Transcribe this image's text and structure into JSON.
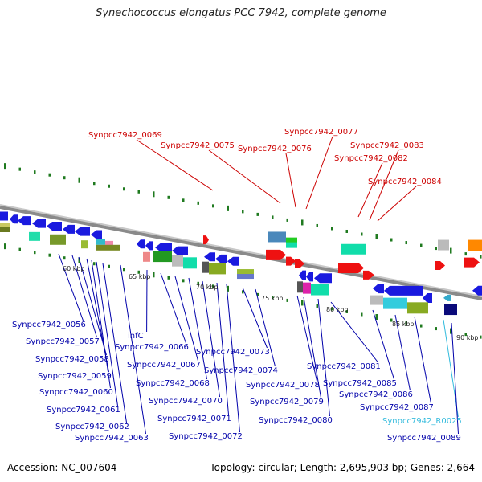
{
  "title": "Synechococcus elongatus PCC 7942, complete genome",
  "footer": {
    "accession": "Accession: NC_007604",
    "summary": "Topology: circular; Length: 2,695,903 bp; Genes: 2,664"
  },
  "colors": {
    "backbone": "#8a8a8a",
    "forward_label": "#cc0000",
    "reverse_label": "#0000aa",
    "rna_label": "#33bbdd",
    "tick": "#1f7a1f",
    "gene_blue": "#1a1adf",
    "gene_red": "#ee1111"
  },
  "scale_labels": [
    "60 kbp",
    "65 kbp",
    "70 kbp",
    "75 kbp",
    "80 kbp",
    "85 kbp",
    "90 kbp"
  ],
  "top_gene_labels": [
    "Synpcc7942_0069",
    "Synpcc7942_0075",
    "Synpcc7942_0076",
    "Synpcc7942_0077",
    "Synpcc7942_0083",
    "Synpcc7942_0082",
    "Synpcc7942_0084"
  ],
  "bottom_gene_labels": [
    "Synpcc7942_0056",
    "Synpcc7942_0057",
    "Synpcc7942_0058",
    "Synpcc7942_0059",
    "Synpcc7942_0060",
    "Synpcc7942_0061",
    "Synpcc7942_0062",
    "Synpcc7942_0063",
    "infC",
    "Synpcc7942_0066",
    "Synpcc7942_0067",
    "Synpcc7942_0068",
    "Synpcc7942_0070",
    "Synpcc7942_0071",
    "Synpcc7942_0072",
    "Synpcc7942_0073",
    "Synpcc7942_0074",
    "Synpcc7942_0078",
    "Synpcc7942_0079",
    "Synpcc7942_0080",
    "Synpcc7942_0081",
    "Synpcc7942_0085",
    "Synpcc7942_0086",
    "Synpcc7942_0087",
    "Synpcc7942_R0025",
    "Synpcc7942_0089"
  ]
}
